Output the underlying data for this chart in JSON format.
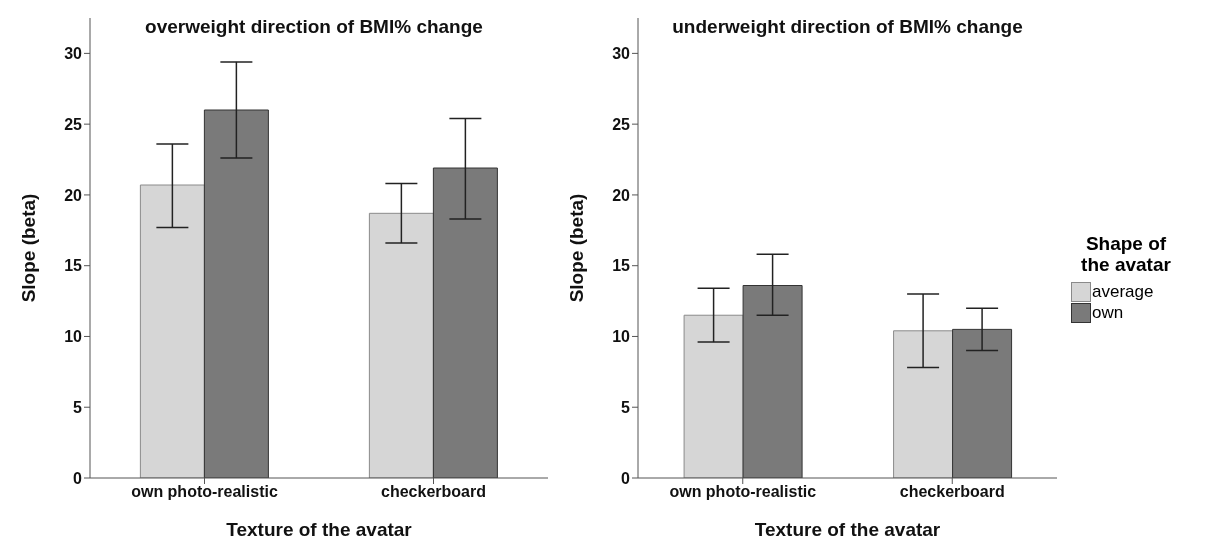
{
  "chart_data": [
    {
      "type": "bar",
      "title": "overweight direction of BMI% change",
      "xlabel": "Texture of the avatar",
      "ylabel": "Slope (beta)",
      "categories": [
        "own photo-realistic",
        "checkerboard"
      ],
      "series": [
        {
          "color": "#d6d6d6",
          "values": [
            20.7,
            18.7
          ],
          "errors": [
            [
              17.7,
              23.6
            ],
            [
              16.6,
              20.8
            ]
          ]
        },
        {
          "color": "#7a7a7a",
          "values": [
            26.0,
            21.9
          ],
          "errors": [
            [
              22.6,
              29.4
            ],
            [
              18.3,
              25.4
            ]
          ]
        }
      ],
      "ylim": [
        0,
        32.5
      ],
      "yticks": [
        0,
        5,
        10,
        15,
        20,
        25,
        30
      ],
      "grid": false,
      "legend": false
    },
    {
      "type": "bar",
      "title": "underweight direction of BMI% change",
      "xlabel": "Texture of the avatar",
      "ylabel": "Slope (beta)",
      "categories": [
        "own photo-realistic",
        "checkerboard"
      ],
      "legend_title": "Shape of the avatar",
      "series": [
        {
          "name": "average",
          "color": "#d6d6d6",
          "values": [
            11.5,
            10.4
          ],
          "errors": [
            [
              9.6,
              13.4
            ],
            [
              7.8,
              13.0
            ]
          ]
        },
        {
          "name": "own",
          "color": "#7a7a7a",
          "values": [
            13.6,
            10.5
          ],
          "errors": [
            [
              11.5,
              15.8
            ],
            [
              9.0,
              12.0
            ]
          ]
        }
      ],
      "ylim": [
        0,
        32.5
      ],
      "yticks": [
        0,
        5,
        10,
        15,
        20,
        25,
        30
      ],
      "grid": false,
      "legend": "right"
    }
  ]
}
